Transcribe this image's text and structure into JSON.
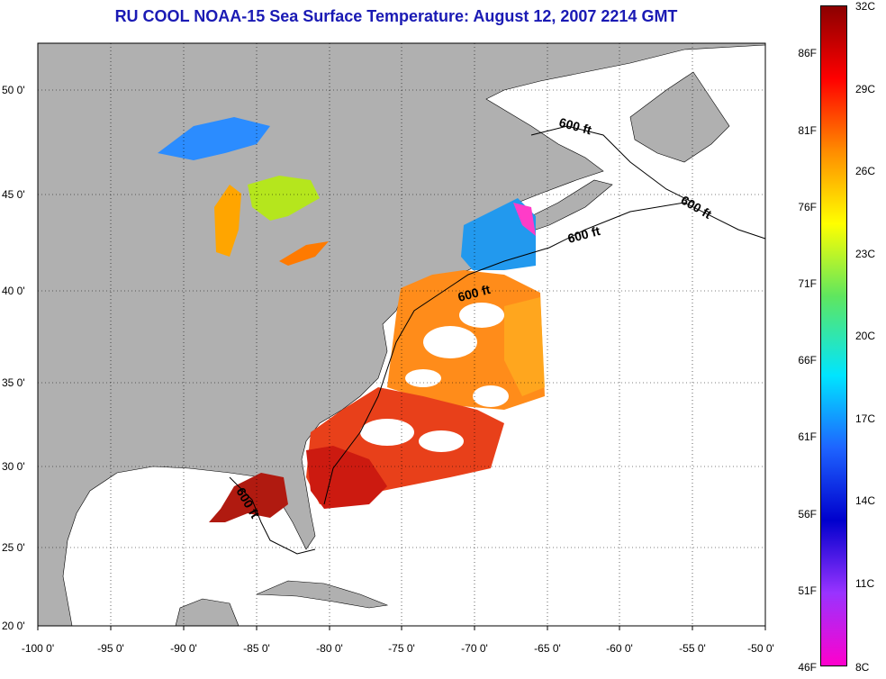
{
  "title": "RU COOL  NOAA-15  Sea Surface Temperature:  August 12, 2007 2214 GMT",
  "lon_ticks": [
    "-100 0'",
    "-95 0'",
    "-90 0'",
    "-85 0'",
    "-80 0'",
    "-75 0'",
    "-70 0'",
    "-65 0'",
    "-60 0'",
    "-55 0'",
    "-50 0'"
  ],
  "lat_ticks": [
    "50 0'",
    "45 0'",
    "40 0'",
    "35 0'",
    "30 0'",
    "25 0'",
    "20 0'"
  ],
  "isobath_labels": [
    "600 ft",
    "600 ft",
    "600 ft",
    "600 ft",
    "600 ft"
  ],
  "colorbar": {
    "celsius": [
      "32C",
      "29C",
      "26C",
      "23C",
      "20C",
      "17C",
      "14C",
      "11C",
      "8C"
    ],
    "fahrenheit": [
      "86F",
      "81F",
      "76F",
      "71F",
      "66F",
      "61F",
      "56F",
      "51F",
      "46F"
    ],
    "colors": [
      "#8b0000",
      "#ff0000",
      "#ff8c00",
      "#ffff00",
      "#5fe65f",
      "#00e5ff",
      "#1e64ff",
      "#0000cd",
      "#9933ff",
      "#ff00cc"
    ]
  }
}
